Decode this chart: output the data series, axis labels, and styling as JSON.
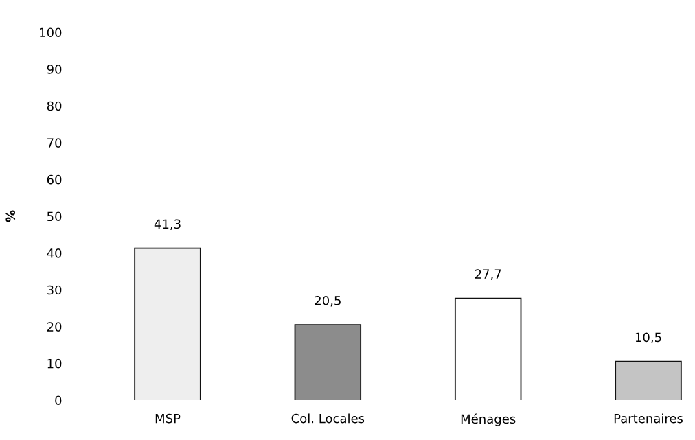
{
  "chart_data": {
    "type": "bar",
    "ylabel": "%",
    "categories": [
      "MSP",
      "Col. Locales",
      "Ménages",
      "Partenaires"
    ],
    "values": [
      41.3,
      20.5,
      27.7,
      10.5
    ],
    "value_labels": [
      "41,3",
      "20,5",
      "27,7",
      "10,5"
    ],
    "colors": [
      "#eeeeee",
      "#8c8c8c",
      "#ffffff",
      "#c4c4c4"
    ],
    "ylim": [
      0,
      100
    ],
    "yticks": [
      0,
      10,
      20,
      30,
      40,
      50,
      60,
      70,
      80,
      90,
      100
    ],
    "grid": false,
    "legend": false
  }
}
